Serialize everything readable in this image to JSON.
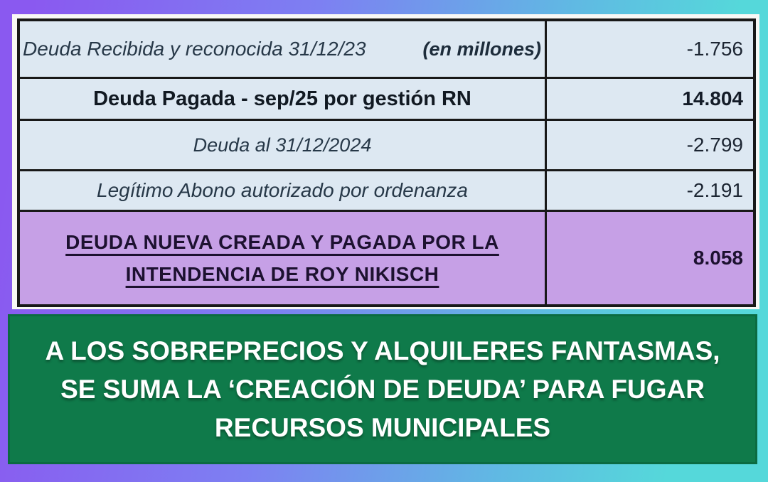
{
  "table": {
    "rows": [
      {
        "label": "Deuda Recibida y reconocida 31/12/23",
        "suffix": "(en millones)",
        "value": "-1.756"
      },
      {
        "label": "Deuda Pagada -  sep/25 por gestión RN",
        "value": "14.804"
      },
      {
        "label": "Deuda al 31/12/2024",
        "value": "-2.799"
      },
      {
        "label": "Legítimo Abono autorizado por ordenanza",
        "value": "-2.191"
      },
      {
        "label_lines": [
          "DEUDA NUEVA CREADA Y PAGADA POR LA",
          "INTENDENCIA DE ROY NIKISCH"
        ],
        "value": "8.058"
      }
    ]
  },
  "caption": {
    "lines": [
      "A LOS SOBREPRECIOS Y ALQUILERES FANTASMAS,",
      "SE SUMA LA ‘CREACIÓN DE DEUDA’ PARA FUGAR",
      "RECURSOS MUNICIPALES"
    ]
  },
  "chart_data": {
    "type": "table",
    "unit_note": "(en millones)",
    "row_labels": [
      "Deuda Recibida y reconocida 31/12/23",
      "Deuda Pagada - sep/25 por gestión RN",
      "Deuda al 31/12/2024",
      "Legítimo Abono autorizado por ordenanza",
      "DEUDA NUEVA CREADA Y PAGADA POR LA INTENDENCIA DE ROY NIKISCH"
    ],
    "values_display": [
      "-1.756",
      "14.804",
      "-2.799",
      "-2.191",
      "8.058"
    ],
    "values": [
      -1756,
      14804,
      -2799,
      -2191,
      8058
    ],
    "highlight_row_index": 4
  },
  "colors": {
    "background_gradient_start": "#8a59f0",
    "background_gradient_end": "#55d8da",
    "cell_blue": "#dde8f2",
    "cell_purple": "#c6a0e6",
    "banner_green": "#0f7a4a",
    "border_black": "#181818",
    "caption_text": "#ffffff"
  }
}
